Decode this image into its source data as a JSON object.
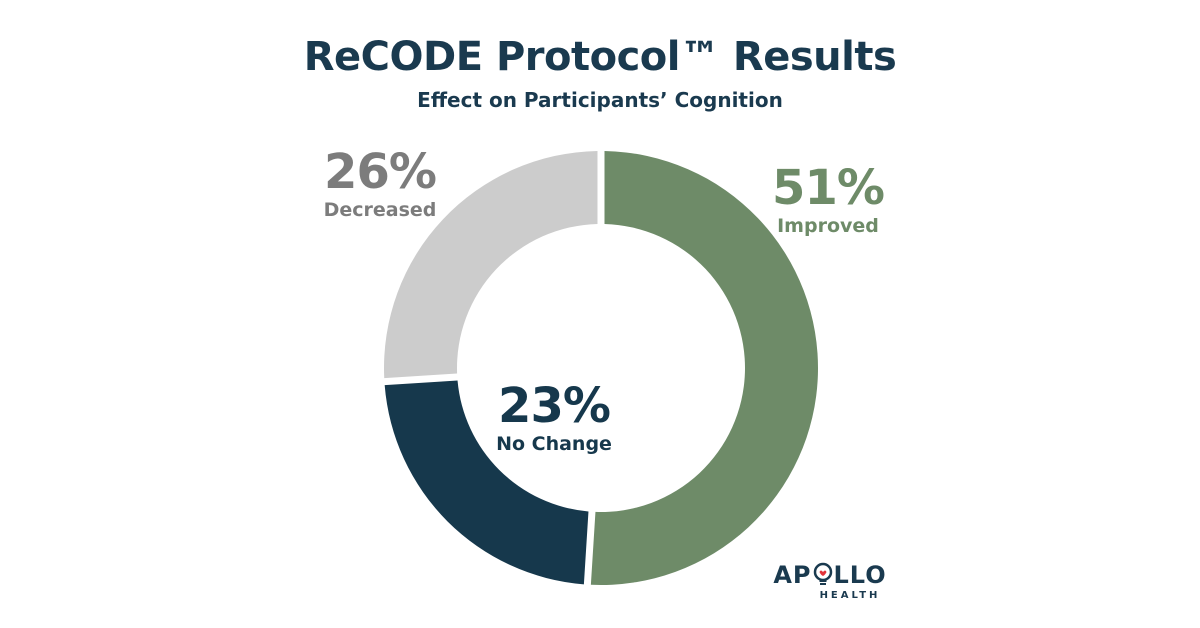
{
  "header": {
    "title": "ReCODE Protocol™ Results",
    "subtitle": "Effect on Participants’ Cognition"
  },
  "chart_data": {
    "type": "pie",
    "title": "ReCODE Protocol™ Results",
    "subtitle": "Effect on Participants’ Cognition",
    "donut": true,
    "slices": [
      {
        "label": "Improved",
        "value": 51,
        "display": "51%",
        "color": "#6e8b68"
      },
      {
        "label": "No Change",
        "value": 23,
        "display": "23%",
        "color": "#16384c"
      },
      {
        "label": "Decreased",
        "value": 26,
        "display": "26%",
        "color": "#cccccc"
      }
    ]
  },
  "logo": {
    "left": "AP",
    "right": "LLO",
    "sub": "HEALTH",
    "color": "#1a3a4f",
    "accent": "#e3343a"
  }
}
